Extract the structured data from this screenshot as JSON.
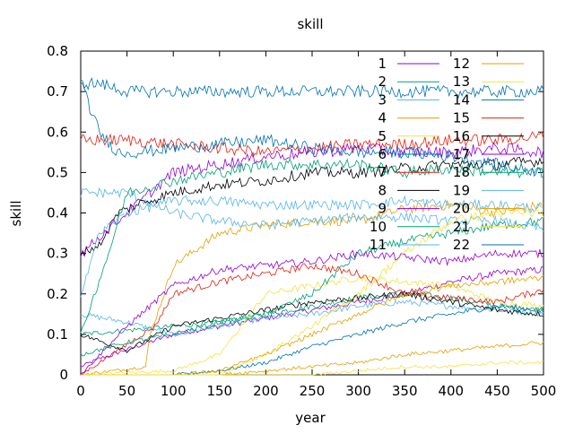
{
  "chart_data": {
    "type": "line",
    "title": "skill",
    "xlabel": "year",
    "ylabel": "skill",
    "xlim": [
      0,
      500
    ],
    "ylim": [
      0,
      0.8
    ],
    "xticks": [
      0,
      50,
      100,
      150,
      200,
      250,
      300,
      350,
      400,
      450,
      500
    ],
    "yticks": [
      0,
      0.1,
      0.2,
      0.3,
      0.4,
      0.5,
      0.6,
      0.7,
      0.8
    ],
    "xtick_labels": [
      "0",
      "50",
      "100",
      "150",
      "200",
      "250",
      "300",
      "350",
      "400",
      "450",
      "500"
    ],
    "ytick_labels": [
      "0",
      "0.1",
      "0.2",
      "0.3",
      "0.4",
      "0.5",
      "0.6",
      "0.7",
      "0.8"
    ],
    "grid": false,
    "legend_position": "top-right",
    "series": [
      {
        "name": "1",
        "color": "#9400d3",
        "values": [
          [
            0,
            0.02
          ],
          [
            20,
            0.04
          ],
          [
            60,
            0.07
          ],
          [
            100,
            0.1
          ],
          [
            150,
            0.12
          ],
          [
            200,
            0.14
          ],
          [
            250,
            0.16
          ],
          [
            300,
            0.18
          ],
          [
            350,
            0.2
          ],
          [
            400,
            0.23
          ],
          [
            450,
            0.25
          ],
          [
            500,
            0.26
          ]
        ]
      },
      {
        "name": "2",
        "color": "#009e73",
        "values": [
          [
            0,
            0.1
          ],
          [
            50,
            0.11
          ],
          [
            100,
            0.12
          ],
          [
            150,
            0.13
          ],
          [
            200,
            0.15
          ],
          [
            250,
            0.17
          ],
          [
            300,
            0.19
          ],
          [
            350,
            0.2
          ],
          [
            400,
            0.19
          ],
          [
            450,
            0.17
          ],
          [
            500,
            0.16
          ]
        ]
      },
      {
        "name": "3",
        "color": "#56b4e9",
        "values": [
          [
            0,
            0.15
          ],
          [
            50,
            0.13
          ],
          [
            100,
            0.1
          ],
          [
            150,
            0.12
          ],
          [
            200,
            0.14
          ],
          [
            250,
            0.15
          ],
          [
            300,
            0.17
          ],
          [
            350,
            0.18
          ],
          [
            400,
            0.17
          ],
          [
            450,
            0.16
          ],
          [
            500,
            0.15
          ]
        ]
      },
      {
        "name": "4",
        "color": "#e69f00",
        "values": [
          [
            0,
            0
          ],
          [
            70,
            0.02
          ],
          [
            75,
            0.1
          ],
          [
            90,
            0.2
          ],
          [
            100,
            0.27
          ],
          [
            150,
            0.35
          ],
          [
            200,
            0.37
          ],
          [
            250,
            0.38
          ],
          [
            300,
            0.38
          ],
          [
            350,
            0.41
          ],
          [
            400,
            0.42
          ],
          [
            450,
            0.4
          ],
          [
            500,
            0.42
          ]
        ]
      },
      {
        "name": "5",
        "color": "#f0e442",
        "values": [
          [
            0,
            0
          ],
          [
            100,
            0.01
          ],
          [
            150,
            0.05
          ],
          [
            200,
            0.2
          ],
          [
            250,
            0.22
          ],
          [
            300,
            0.24
          ],
          [
            350,
            0.23
          ],
          [
            400,
            0.22
          ],
          [
            450,
            0.18
          ],
          [
            500,
            0.17
          ]
        ]
      },
      {
        "name": "6",
        "color": "#0072b2",
        "values": [
          [
            0,
            0
          ],
          [
            100,
            0
          ],
          [
            150,
            0.01
          ],
          [
            200,
            0.03
          ],
          [
            250,
            0.07
          ],
          [
            300,
            0.1
          ],
          [
            350,
            0.13
          ],
          [
            400,
            0.15
          ],
          [
            450,
            0.17
          ],
          [
            500,
            0.16
          ]
        ]
      },
      {
        "name": "7",
        "color": "#e51e10",
        "values": [
          [
            0,
            0
          ],
          [
            80,
            0.12
          ],
          [
            100,
            0.2
          ],
          [
            150,
            0.23
          ],
          [
            200,
            0.25
          ],
          [
            250,
            0.27
          ],
          [
            300,
            0.25
          ],
          [
            350,
            0.2
          ],
          [
            400,
            0.19
          ],
          [
            450,
            0.18
          ],
          [
            500,
            0.21
          ]
        ]
      },
      {
        "name": "8",
        "color": "#000000",
        "values": [
          [
            0,
            0.1
          ],
          [
            50,
            0.06
          ],
          [
            100,
            0.12
          ],
          [
            150,
            0.14
          ],
          [
            200,
            0.16
          ],
          [
            250,
            0.18
          ],
          [
            300,
            0.19
          ],
          [
            350,
            0.2
          ],
          [
            400,
            0.18
          ],
          [
            450,
            0.16
          ],
          [
            500,
            0.15
          ]
        ]
      },
      {
        "name": "9",
        "color": "#9400d3",
        "values": [
          [
            0,
            0
          ],
          [
            50,
            0.12
          ],
          [
            100,
            0.22
          ],
          [
            150,
            0.26
          ],
          [
            200,
            0.27
          ],
          [
            250,
            0.28
          ],
          [
            300,
            0.3
          ],
          [
            350,
            0.29
          ],
          [
            400,
            0.28
          ],
          [
            450,
            0.3
          ],
          [
            500,
            0.3
          ]
        ]
      },
      {
        "name": "10",
        "color": "#009e73",
        "values": [
          [
            0,
            0.05
          ],
          [
            50,
            0.08
          ],
          [
            100,
            0.1
          ],
          [
            150,
            0.13
          ],
          [
            200,
            0.15
          ],
          [
            250,
            0.2
          ],
          [
            300,
            0.3
          ],
          [
            350,
            0.33
          ],
          [
            400,
            0.35
          ],
          [
            450,
            0.37
          ],
          [
            500,
            0.38
          ]
        ]
      },
      {
        "name": "11",
        "color": "#56b4e9",
        "values": [
          [
            0,
            0.45
          ],
          [
            50,
            0.45
          ],
          [
            100,
            0.4
          ],
          [
            150,
            0.38
          ],
          [
            200,
            0.37
          ],
          [
            250,
            0.38
          ],
          [
            300,
            0.39
          ],
          [
            350,
            0.39
          ],
          [
            400,
            0.38
          ],
          [
            450,
            0.38
          ],
          [
            500,
            0.36
          ]
        ]
      },
      {
        "name": "12",
        "color": "#e69f00",
        "values": [
          [
            0,
            0
          ],
          [
            150,
            0
          ],
          [
            200,
            0.01
          ],
          [
            250,
            0.02
          ],
          [
            300,
            0.03
          ],
          [
            350,
            0.05
          ],
          [
            400,
            0.06
          ],
          [
            450,
            0.07
          ],
          [
            500,
            0.08
          ]
        ]
      },
      {
        "name": "13",
        "color": "#f0e442",
        "values": [
          [
            0,
            0
          ],
          [
            250,
            0
          ],
          [
            300,
            0.01
          ],
          [
            350,
            0.02
          ],
          [
            400,
            0.02
          ],
          [
            450,
            0.03
          ],
          [
            500,
            0.03
          ]
        ]
      },
      {
        "name": "14",
        "color": "#0072b2",
        "values": [
          [
            0,
            0.72
          ],
          [
            20,
            0.72
          ],
          [
            50,
            0.7
          ],
          [
            100,
            0.7
          ],
          [
            150,
            0.7
          ],
          [
            200,
            0.7
          ],
          [
            250,
            0.7
          ],
          [
            300,
            0.7
          ],
          [
            350,
            0.7
          ],
          [
            400,
            0.7
          ],
          [
            450,
            0.7
          ],
          [
            500,
            0.7
          ]
        ]
      },
      {
        "name": "15",
        "color": "#e51e10",
        "values": [
          [
            0,
            0.58
          ],
          [
            50,
            0.58
          ],
          [
            100,
            0.57
          ],
          [
            150,
            0.56
          ],
          [
            200,
            0.55
          ],
          [
            250,
            0.56
          ],
          [
            300,
            0.57
          ],
          [
            350,
            0.57
          ],
          [
            400,
            0.58
          ],
          [
            450,
            0.58
          ],
          [
            500,
            0.59
          ]
        ]
      },
      {
        "name": "16",
        "color": "#000000",
        "values": [
          [
            0,
            0.3
          ],
          [
            20,
            0.32
          ],
          [
            40,
            0.4
          ],
          [
            60,
            0.42
          ],
          [
            100,
            0.45
          ],
          [
            150,
            0.47
          ],
          [
            200,
            0.48
          ],
          [
            250,
            0.5
          ],
          [
            300,
            0.5
          ],
          [
            350,
            0.51
          ],
          [
            400,
            0.52
          ],
          [
            450,
            0.52
          ],
          [
            500,
            0.53
          ]
        ]
      },
      {
        "name": "17",
        "color": "#9400d3",
        "values": [
          [
            0,
            0.3
          ],
          [
            50,
            0.4
          ],
          [
            100,
            0.5
          ],
          [
            150,
            0.52
          ],
          [
            200,
            0.54
          ],
          [
            250,
            0.55
          ],
          [
            300,
            0.56
          ],
          [
            350,
            0.55
          ],
          [
            400,
            0.55
          ],
          [
            450,
            0.56
          ],
          [
            500,
            0.55
          ]
        ]
      },
      {
        "name": "18",
        "color": "#009e73",
        "values": [
          [
            0,
            0.1
          ],
          [
            30,
            0.3
          ],
          [
            50,
            0.45
          ],
          [
            100,
            0.48
          ],
          [
            150,
            0.5
          ],
          [
            200,
            0.52
          ],
          [
            250,
            0.52
          ],
          [
            300,
            0.52
          ],
          [
            350,
            0.5
          ],
          [
            400,
            0.51
          ],
          [
            450,
            0.5
          ],
          [
            500,
            0.5
          ]
        ]
      },
      {
        "name": "19",
        "color": "#56b4e9",
        "values": [
          [
            0,
            0.2
          ],
          [
            20,
            0.35
          ],
          [
            50,
            0.4
          ],
          [
            100,
            0.43
          ],
          [
            150,
            0.43
          ],
          [
            200,
            0.42
          ],
          [
            250,
            0.42
          ],
          [
            300,
            0.42
          ],
          [
            350,
            0.43
          ],
          [
            400,
            0.42
          ],
          [
            450,
            0.42
          ],
          [
            500,
            0.41
          ]
        ]
      },
      {
        "name": "20",
        "color": "#e69f00",
        "values": [
          [
            0,
            0
          ],
          [
            100,
            0
          ],
          [
            150,
            0.01
          ],
          [
            200,
            0.05
          ],
          [
            250,
            0.1
          ],
          [
            300,
            0.15
          ],
          [
            350,
            0.2
          ],
          [
            400,
            0.22
          ],
          [
            450,
            0.23
          ],
          [
            500,
            0.24
          ]
        ]
      },
      {
        "name": "21",
        "color": "#f0e442",
        "values": [
          [
            0,
            0
          ],
          [
            150,
            0
          ],
          [
            200,
            0.05
          ],
          [
            250,
            0.12
          ],
          [
            300,
            0.2
          ],
          [
            350,
            0.3
          ],
          [
            400,
            0.38
          ],
          [
            450,
            0.4
          ],
          [
            500,
            0.4
          ]
        ]
      },
      {
        "name": "22",
        "color": "#0072b2",
        "values": [
          [
            0,
            0.72
          ],
          [
            20,
            0.6
          ],
          [
            40,
            0.55
          ],
          [
            60,
            0.55
          ],
          [
            100,
            0.56
          ],
          [
            150,
            0.57
          ],
          [
            200,
            0.58
          ],
          [
            250,
            0.56
          ],
          [
            300,
            0.55
          ],
          [
            350,
            0.55
          ],
          [
            400,
            0.54
          ],
          [
            450,
            0.52
          ],
          [
            500,
            0.5
          ]
        ]
      }
    ]
  }
}
